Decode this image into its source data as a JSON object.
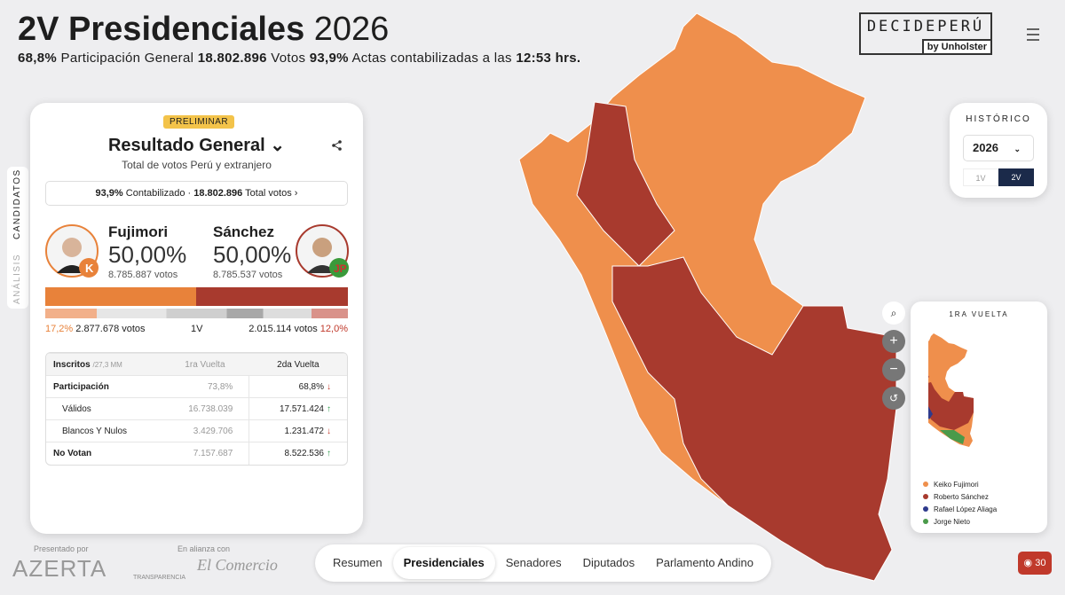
{
  "header": {
    "title": "2V Presidenciales",
    "year": "2026",
    "stats": [
      "68,8%",
      "Participación General",
      "18.802.896",
      "Votos",
      "93,9%",
      "Actas contabilizadas a las",
      "12:53 hrs."
    ]
  },
  "brand": {
    "name": "DECIDEPERÚ",
    "by": "by Unholster"
  },
  "side_tabs": [
    "CANDIDATOS",
    "ANÁLISIS"
  ],
  "card": {
    "badge": "PRELIMINAR",
    "title": "Resultado General",
    "subtitle": "Total de votos Perú y extranjero",
    "summary": {
      "percent": "93,9%",
      "percent_label": "Contabilizado",
      "total": "18.802.896",
      "total_label": "Total votos"
    },
    "candidates": [
      {
        "name": "Fujimori",
        "percent": "50,00%",
        "votes": "8.785.887 votos"
      },
      {
        "name": "Sánchez",
        "percent": "50,00%",
        "votes": "8.785.537 votos"
      }
    ],
    "first_round": {
      "left_percent": "17,2%",
      "left_votes": "2.877.678 votos",
      "label": "1V",
      "right_votes": "2.015.114 votos",
      "right_percent": "12,0%"
    },
    "table": {
      "header": [
        "Inscritos",
        "/27,3 MM",
        "1ra Vuelta",
        "2da Vuelta"
      ],
      "rows": [
        [
          "Participación",
          "73,8%",
          "68,8%"
        ],
        [
          "Válidos",
          "16.738.039",
          "17.571.424"
        ],
        [
          "Blancos Y Nulos",
          "3.429.706",
          "1.231.472"
        ],
        [
          "No Votan",
          "7.157.687",
          "8.522.536"
        ]
      ]
    }
  },
  "history": {
    "title": "HISTÓRICO",
    "year": "2026",
    "rounds": [
      "1V",
      "2V"
    ]
  },
  "mini_map": {
    "title": "1RA VUELTA",
    "legend": [
      "Keiko Fujimori",
      "Roberto Sánchez",
      "Rafael López Aliaga",
      "Jorge Nieto"
    ]
  },
  "footer": {
    "presented_by": "Presentado por",
    "sponsor": "AZERTA",
    "alliance": "En alianza con",
    "partners": [
      "TRANSPARENCIA",
      "El Comercio"
    ],
    "nav": [
      "Resumen",
      "Presidenciales",
      "Senadores",
      "Diputados",
      "Parlamento Andino"
    ],
    "live": "30"
  }
}
